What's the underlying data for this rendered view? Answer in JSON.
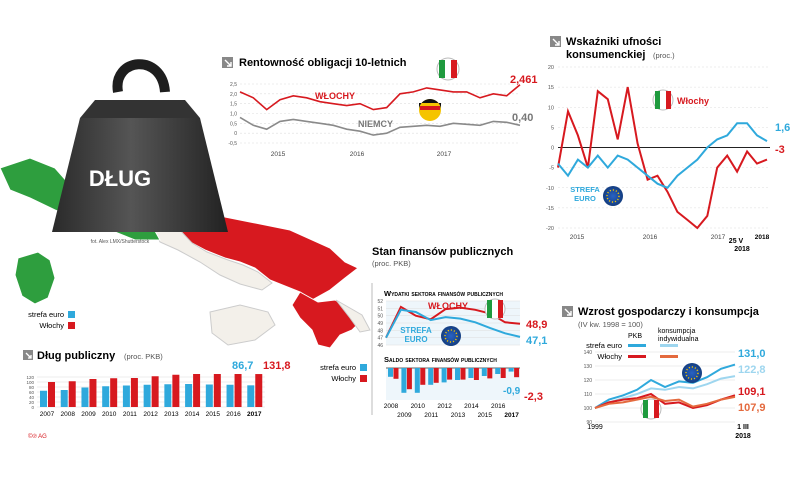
{
  "colors": {
    "red": "#d7191f",
    "blue": "#2fa9dc",
    "gray": "#8a8a8a",
    "light_blue": "#9ed6ef",
    "orange_red": "#e46a3e",
    "it_green": "#1f9a3e",
    "de_gold": "#f5c400",
    "eu_blue": "#1d4e9e",
    "map_green": "#2e9e3e",
    "map_red": "#d7191f"
  },
  "weight": {
    "label": "DŁUG",
    "credit": "fot. Alex LMX/Shutterstock"
  },
  "bonds": {
    "title": "Rentowność obligacji 10-letnich",
    "italy_label": "WŁOCHY",
    "germany_label": "NIEMCY",
    "italy_value": "2,461",
    "germany_value": "0,40",
    "y_ticks": [
      "2,5",
      "2,0",
      "1,5",
      "1,0",
      "0,5",
      "0",
      "-0,5"
    ],
    "x_ticks": [
      "2015",
      "2016",
      "2017"
    ]
  },
  "confidence": {
    "title_line1": "Wskaźniki ufności",
    "title_line2": "konsumenckiej",
    "unit": "(proc.)",
    "italy_label": "Włochy",
    "eurozone_label_1": "STREFA",
    "eurozone_label_2": "EURO",
    "eurozone_value": "1,6",
    "italy_value": "-3",
    "y_ticks": [
      "20",
      "15",
      "10",
      "5",
      "0",
      "-5",
      "-10",
      "-15",
      "-20"
    ],
    "x_ticks": [
      "2015",
      "2016",
      "2017"
    ],
    "end_label_top": "25 V",
    "end_label_bottom": "2018",
    "end_year": "2018"
  },
  "finance": {
    "title": "Stan finansów publicznych",
    "unit": "(proc. PKB)",
    "legend": [
      "strefa euro",
      "Włochy"
    ],
    "exp_title": "Wydatki sektora finansów publicznych",
    "exp_italy_label": "WŁOCHY",
    "exp_euro_label_1": "STREFA",
    "exp_euro_label_2": "EURO",
    "exp_italy_value": "48,9",
    "exp_euro_value": "47,1",
    "exp_y_ticks": [
      "52",
      "51",
      "50",
      "49",
      "48",
      "47",
      "46"
    ],
    "bal_title": "Saldo sektora finansów publicznych",
    "bal_euro_value": "-0,9",
    "bal_italy_value": "-2,3",
    "years_row1": [
      "2008",
      "2010",
      "2012",
      "2014",
      "2016"
    ],
    "years_row2": [
      "2009",
      "2011",
      "2013",
      "2015",
      "2017"
    ]
  },
  "debt": {
    "legend": [
      "strefa euro",
      "Włochy"
    ],
    "title": "Dług publiczny",
    "unit": "(proc. PKB)",
    "euro_value": "86,7",
    "italy_value": "131,8",
    "y_ticks": [
      "120",
      "100",
      "80",
      "60",
      "40",
      "20",
      "0"
    ],
    "years": [
      "2007",
      "2008",
      "2009",
      "2010",
      "2011",
      "2012",
      "2013",
      "2014",
      "2015",
      "2016",
      "2017"
    ]
  },
  "growth": {
    "title": "Wzrost gospodarczy i konsumpcja",
    "unit": "(IV kw. 1998 = 100)",
    "legend_rows": [
      "strefa euro",
      "Włochy"
    ],
    "legend_col1": "PKB",
    "legend_col2_1": "konsumpcja",
    "legend_col2_2": "indywidualna",
    "values": [
      "131,0",
      "122,8",
      "109,1",
      "107,9"
    ],
    "y_ticks": [
      "140",
      "130",
      "120",
      "110",
      "100",
      "90"
    ],
    "x_start": "1999",
    "end_top": "1 III",
    "end_bottom": "2018"
  },
  "footer": "©℗ AG",
  "chart_data": [
    {
      "type": "line",
      "title": "Rentowność obligacji 10-letnich",
      "x": [
        "2014-11",
        "2015-01",
        "2015-03",
        "2015-05",
        "2015-07",
        "2015-09",
        "2015-11",
        "2016-01",
        "2016-03",
        "2016-05",
        "2016-07",
        "2016-09",
        "2016-11",
        "2017-01",
        "2017-03",
        "2017-05",
        "2017-07",
        "2017-09",
        "2017-11",
        "2018-01",
        "2018-03",
        "2018-05"
      ],
      "series": [
        {
          "name": "Włochy",
          "values": [
            2.1,
            1.8,
            1.2,
            1.7,
            1.9,
            1.8,
            1.6,
            1.5,
            1.4,
            1.5,
            1.2,
            1.3,
            2.0,
            2.1,
            2.3,
            2.2,
            2.1,
            2.1,
            1.8,
            2.0,
            1.9,
            2.46
          ]
        },
        {
          "name": "Niemcy",
          "values": [
            0.8,
            0.4,
            0.2,
            0.6,
            0.7,
            0.6,
            0.5,
            0.4,
            0.2,
            0.1,
            -0.1,
            0.0,
            0.3,
            0.35,
            0.4,
            0.35,
            0.5,
            0.45,
            0.4,
            0.6,
            0.55,
            0.4
          ]
        }
      ],
      "ylim": [
        -0.5,
        2.5
      ]
    },
    {
      "type": "line",
      "title": "Wskaźniki ufności konsumenckiej",
      "x": [
        "2014-11",
        "2015-01",
        "2015-03",
        "2015-05",
        "2015-07",
        "2015-09",
        "2015-11",
        "2016-01",
        "2016-03",
        "2016-05",
        "2016-07",
        "2016-09",
        "2016-11",
        "2017-01",
        "2017-03",
        "2017-05",
        "2017-07",
        "2017-09",
        "2017-11",
        "2018-01",
        "2018-03",
        "2018-05"
      ],
      "series": [
        {
          "name": "Włochy",
          "values": [
            -5,
            9,
            3,
            -5,
            14,
            12,
            2,
            15,
            1,
            -8,
            -7,
            -11,
            -16,
            -18,
            -20,
            -17,
            -5,
            -2,
            -6,
            -1,
            -4,
            -3
          ]
        },
        {
          "name": "Strefa euro",
          "values": [
            -4,
            -7,
            -3,
            -5,
            -2,
            -5,
            -2,
            -3,
            -5,
            -7,
            -9,
            -10,
            -7,
            -5,
            -3,
            0,
            2,
            3,
            6,
            6,
            3,
            1.6
          ]
        }
      ],
      "ylim": [
        -20,
        20
      ]
    },
    {
      "type": "line",
      "title": "Wydatki sektora finansów publicznych",
      "x": [
        "2008",
        "2009",
        "2010",
        "2011",
        "2012",
        "2013",
        "2014",
        "2015",
        "2016",
        "2017"
      ],
      "series": [
        {
          "name": "Włochy",
          "values": [
            47.0,
            51.2,
            50.0,
            49.5,
            50.9,
            51.1,
            50.8,
            50.3,
            49.1,
            48.9
          ]
        },
        {
          "name": "Strefa euro",
          "values": [
            47.0,
            50.8,
            50.5,
            49.4,
            49.8,
            49.6,
            49.1,
            48.3,
            47.6,
            47.1
          ]
        }
      ],
      "ylim": [
        46,
        52
      ]
    },
    {
      "type": "bar",
      "title": "Saldo sektora finansów publicznych",
      "categories": [
        "2008",
        "2009",
        "2010",
        "2011",
        "2012",
        "2013",
        "2014",
        "2015",
        "2016",
        "2017"
      ],
      "series": [
        {
          "name": "strefa euro",
          "values": [
            -2.2,
            -6.2,
            -6.2,
            -4.2,
            -3.6,
            -3.0,
            -2.5,
            -2.0,
            -1.5,
            -0.9
          ]
        },
        {
          "name": "Włochy",
          "values": [
            -2.7,
            -5.3,
            -4.2,
            -3.7,
            -2.9,
            -2.9,
            -3.0,
            -2.6,
            -2.5,
            -2.3
          ]
        }
      ]
    },
    {
      "type": "bar",
      "title": "Dług publiczny",
      "categories": [
        "2007",
        "2008",
        "2009",
        "2010",
        "2011",
        "2012",
        "2013",
        "2014",
        "2015",
        "2016",
        "2017"
      ],
      "series": [
        {
          "name": "strefa euro",
          "values": [
            65,
            68,
            78,
            83,
            86,
            89,
            91,
            92,
            90,
            89,
            86.7
          ]
        },
        {
          "name": "Włochy",
          "values": [
            100,
            103,
            112,
            115,
            116,
            123,
            129,
            132,
            132,
            132,
            131.8
          ]
        }
      ],
      "ylim": [
        0,
        140
      ]
    },
    {
      "type": "line",
      "title": "Wzrost gospodarczy i konsumpcja",
      "x": [
        "1999",
        "2001",
        "2003",
        "2005",
        "2007",
        "2009",
        "2011",
        "2013",
        "2015",
        "2017",
        "2018"
      ],
      "series": [
        {
          "name": "strefa euro PKB",
          "values": [
            100,
            106,
            109,
            113,
            120,
            115,
            119,
            118,
            122,
            128,
            131.0
          ]
        },
        {
          "name": "strefa euro konsumpcja indywidualna",
          "values": [
            100,
            104,
            107,
            110,
            114,
            113,
            115,
            114,
            117,
            121,
            122.8
          ]
        },
        {
          "name": "Włochy PKB",
          "values": [
            100,
            104,
            106,
            107,
            110,
            103,
            104,
            100,
            102,
            106,
            109.1
          ]
        },
        {
          "name": "Włochy konsumpcja indywidualna",
          "values": [
            100,
            103,
            104,
            106,
            108,
            105,
            106,
            101,
            103,
            106,
            107.9
          ]
        }
      ],
      "ylim": [
        90,
        140
      ]
    }
  ]
}
